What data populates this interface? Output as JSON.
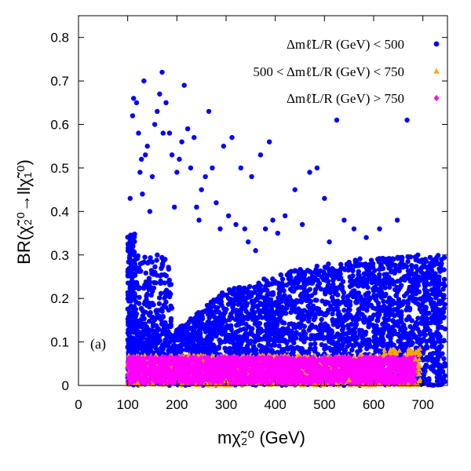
{
  "chart_data": {
    "type": "scatter",
    "xlim": [
      0,
      750
    ],
    "ylim": [
      0,
      0.85
    ],
    "xticks": [
      0,
      100,
      200,
      300,
      400,
      500,
      600,
      700
    ],
    "yticks": [
      0,
      0.1,
      0.2,
      0.3,
      0.4,
      0.5,
      0.6,
      0.7,
      0.8
    ],
    "xtick_labels": [
      "0",
      "100",
      "200",
      "300",
      "400",
      "500",
      "600",
      "700"
    ],
    "ytick_labels": [
      "0",
      "0.1",
      "0.2",
      "0.3",
      "0.4",
      "0.5",
      "0.6",
      "0.7",
      "0.8"
    ],
    "xlabel": "mχ̃₂⁰ (GeV)",
    "ylabel": "BR(χ̃₂⁰→llχ̃₁⁰)",
    "panel_label": "(a)",
    "grid": false,
    "legend_position": "top-right",
    "series": [
      {
        "name": "Δmℓ̃L/R (GeV) < 500",
        "marker": "circle",
        "color": "#0000ff",
        "region": {
          "x_range": [
            100,
            745
          ],
          "y_lower": 0.0,
          "y_upper_at_x": [
            [
              190,
              0.12
            ],
            [
              300,
              0.22
            ],
            [
              420,
              0.26
            ],
            [
              550,
              0.29
            ],
            [
              745,
              0.3
            ]
          ]
        },
        "points": [
          [
            105,
            0.43
          ],
          [
            108,
            0.32
          ],
          [
            110,
            0.62
          ],
          [
            112,
            0.66
          ],
          [
            118,
            0.65
          ],
          [
            122,
            0.58
          ],
          [
            125,
            0.49
          ],
          [
            128,
            0.52
          ],
          [
            130,
            0.44
          ],
          [
            133,
            0.7
          ],
          [
            136,
            0.53
          ],
          [
            140,
            0.55
          ],
          [
            145,
            0.4
          ],
          [
            150,
            0.48
          ],
          [
            155,
            0.6
          ],
          [
            160,
            0.63
          ],
          [
            165,
            0.67
          ],
          [
            170,
            0.72
          ],
          [
            172,
            0.58
          ],
          [
            178,
            0.65
          ],
          [
            185,
            0.58
          ],
          [
            190,
            0.53
          ],
          [
            195,
            0.41
          ],
          [
            200,
            0.49
          ],
          [
            205,
            0.52
          ],
          [
            210,
            0.56
          ],
          [
            215,
            0.69
          ],
          [
            222,
            0.59
          ],
          [
            228,
            0.5
          ],
          [
            235,
            0.57
          ],
          [
            240,
            0.41
          ],
          [
            245,
            0.38
          ],
          [
            250,
            0.45
          ],
          [
            258,
            0.48
          ],
          [
            265,
            0.63
          ],
          [
            272,
            0.5
          ],
          [
            280,
            0.42
          ],
          [
            288,
            0.36
          ],
          [
            295,
            0.55
          ],
          [
            305,
            0.39
          ],
          [
            312,
            0.57
          ],
          [
            320,
            0.37
          ],
          [
            330,
            0.5
          ],
          [
            338,
            0.36
          ],
          [
            345,
            0.33
          ],
          [
            352,
            0.48
          ],
          [
            360,
            0.31
          ],
          [
            370,
            0.53
          ],
          [
            380,
            0.36
          ],
          [
            388,
            0.56
          ],
          [
            395,
            0.38
          ],
          [
            405,
            0.35
          ],
          [
            420,
            0.39
          ],
          [
            440,
            0.45
          ],
          [
            455,
            0.37
          ],
          [
            470,
            0.49
          ],
          [
            485,
            0.5
          ],
          [
            500,
            0.43
          ],
          [
            510,
            0.33
          ],
          [
            525,
            0.61
          ],
          [
            540,
            0.38
          ],
          [
            560,
            0.36
          ],
          [
            585,
            0.34
          ],
          [
            612,
            0.36
          ],
          [
            648,
            0.38
          ],
          [
            668,
            0.61
          ],
          [
            690,
            0.3
          ],
          [
            715,
            0.25
          ],
          [
            730,
            0.24
          ],
          [
            738,
            0.28
          ],
          [
            742,
            0.2
          ],
          [
            745,
            0.13
          ],
          [
            700,
            0.17
          ],
          [
            725,
            0.22
          ],
          [
            680,
            0.23
          ],
          [
            735,
            0.1
          ],
          [
            705,
            0.29
          ]
        ]
      },
      {
        "name": "500 < Δmℓ̃L/R (GeV) < 750",
        "marker": "triangle",
        "color": "#ffa500",
        "region": {
          "x_range": [
            100,
            695
          ],
          "y_range": [
            0.0,
            0.085
          ]
        },
        "points": [
          [
            690,
            0.08
          ],
          [
            685,
            0.06
          ],
          [
            120,
            0.005
          ],
          [
            300,
            0.01
          ],
          [
            550,
            0.012
          ]
        ]
      },
      {
        "name": "Δmℓ̃L/R (GeV) > 750",
        "marker": "diamond",
        "color": "#ff00ff",
        "region": {
          "x_range": [
            100,
            685
          ],
          "y_range": [
            0.0,
            0.07
          ]
        },
        "points": [
          [
            110,
            0.065
          ],
          [
            200,
            0.06
          ],
          [
            350,
            0.05
          ],
          [
            500,
            0.055
          ],
          [
            670,
            0.04
          ]
        ]
      }
    ]
  }
}
